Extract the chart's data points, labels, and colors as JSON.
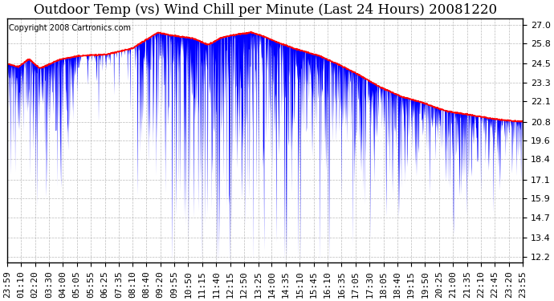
{
  "title": "Outdoor Temp (vs) Wind Chill per Minute (Last 24 Hours) 20081220",
  "copyright_text": "Copyright 2008 Cartronics.com",
  "y_ticks": [
    12.2,
    13.4,
    14.7,
    15.9,
    17.1,
    18.4,
    19.6,
    20.8,
    22.1,
    23.3,
    24.5,
    25.8,
    27.0
  ],
  "y_min": 11.8,
  "y_max": 27.4,
  "x_labels": [
    "23:59",
    "01:10",
    "02:20",
    "03:30",
    "04:00",
    "05:05",
    "05:55",
    "06:25",
    "07:35",
    "08:10",
    "08:40",
    "09:20",
    "09:55",
    "10:50",
    "11:15",
    "11:40",
    "12:15",
    "12:50",
    "13:25",
    "14:00",
    "14:35",
    "15:10",
    "15:45",
    "16:10",
    "16:35",
    "17:05",
    "17:30",
    "18:05",
    "18:40",
    "19:15",
    "19:50",
    "20:25",
    "21:00",
    "21:35",
    "22:10",
    "22:45",
    "23:20",
    "23:55"
  ],
  "background_color": "#ffffff",
  "plot_bg_color": "#ffffff",
  "grid_color": "#aaaaaa",
  "bar_color": "#0000ff",
  "line_color": "#ff0000",
  "title_fontsize": 12,
  "tick_fontsize": 8,
  "copyright_fontsize": 7
}
